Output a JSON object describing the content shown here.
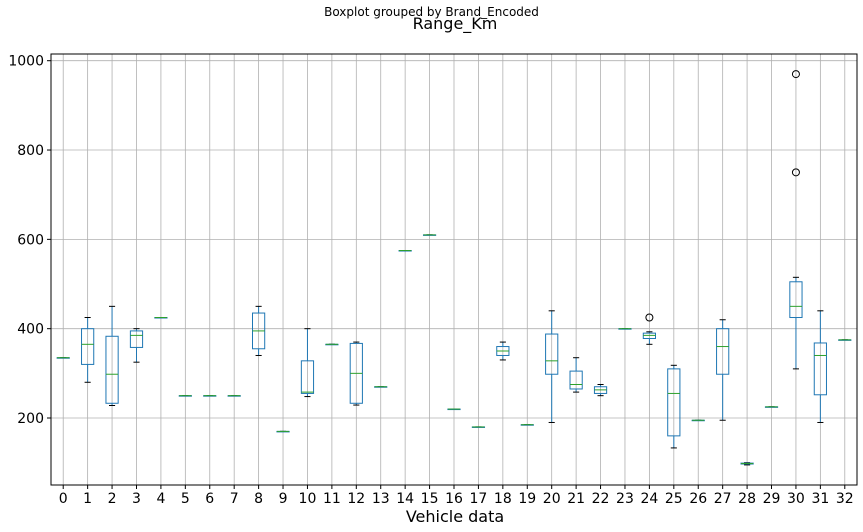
{
  "chart_data": {
    "type": "boxplot",
    "suptitle": "Boxplot grouped by Brand_Encoded",
    "title": "Range_Km",
    "xlabel": "Vehicle data",
    "ylabel": "",
    "ylim": [
      50,
      1015
    ],
    "yticks": [
      200,
      400,
      600,
      800,
      1000
    ],
    "grid": true,
    "colors": {
      "box": "#1f77b4",
      "median": "#2ca02c",
      "whisker": "#000000",
      "grid": "#b0b0b0"
    },
    "categories": [
      "0",
      "1",
      "2",
      "3",
      "4",
      "5",
      "6",
      "7",
      "8",
      "9",
      "10",
      "11",
      "12",
      "13",
      "14",
      "15",
      "16",
      "17",
      "18",
      "19",
      "20",
      "21",
      "22",
      "23",
      "24",
      "25",
      "26",
      "27",
      "28",
      "29",
      "30",
      "31",
      "32"
    ],
    "boxes": [
      {
        "min": 335,
        "q1": 335,
        "median": 335,
        "q3": 335,
        "max": 335,
        "outliers": []
      },
      {
        "min": 280,
        "q1": 320,
        "median": 365,
        "q3": 400,
        "max": 425,
        "outliers": []
      },
      {
        "min": 228,
        "q1": 233,
        "median": 298,
        "q3": 383,
        "max": 450,
        "outliers": []
      },
      {
        "min": 325,
        "q1": 358,
        "median": 385,
        "q3": 395,
        "max": 400,
        "outliers": []
      },
      {
        "min": 425,
        "q1": 425,
        "median": 425,
        "q3": 425,
        "max": 425,
        "outliers": []
      },
      {
        "min": 250,
        "q1": 250,
        "median": 250,
        "q3": 250,
        "max": 250,
        "outliers": []
      },
      {
        "min": 250,
        "q1": 250,
        "median": 250,
        "q3": 250,
        "max": 250,
        "outliers": []
      },
      {
        "min": 250,
        "q1": 250,
        "median": 250,
        "q3": 250,
        "max": 250,
        "outliers": []
      },
      {
        "min": 340,
        "q1": 355,
        "median": 395,
        "q3": 435,
        "max": 450,
        "outliers": []
      },
      {
        "min": 170,
        "q1": 170,
        "median": 170,
        "q3": 170,
        "max": 170,
        "outliers": []
      },
      {
        "min": 248,
        "q1": 255,
        "median": 258,
        "q3": 328,
        "max": 400,
        "outliers": []
      },
      {
        "min": 365,
        "q1": 365,
        "median": 365,
        "q3": 365,
        "max": 365,
        "outliers": []
      },
      {
        "min": 229,
        "q1": 233,
        "median": 300,
        "q3": 367,
        "max": 370,
        "outliers": []
      },
      {
        "min": 270,
        "q1": 270,
        "median": 270,
        "q3": 270,
        "max": 270,
        "outliers": []
      },
      {
        "min": 575,
        "q1": 575,
        "median": 575,
        "q3": 575,
        "max": 575,
        "outliers": []
      },
      {
        "min": 610,
        "q1": 610,
        "median": 610,
        "q3": 610,
        "max": 610,
        "outliers": []
      },
      {
        "min": 220,
        "q1": 220,
        "median": 220,
        "q3": 220,
        "max": 220,
        "outliers": []
      },
      {
        "min": 180,
        "q1": 180,
        "median": 180,
        "q3": 180,
        "max": 180,
        "outliers": []
      },
      {
        "min": 330,
        "q1": 340,
        "median": 350,
        "q3": 360,
        "max": 370,
        "outliers": []
      },
      {
        "min": 185,
        "q1": 185,
        "median": 185,
        "q3": 185,
        "max": 185,
        "outliers": []
      },
      {
        "min": 190,
        "q1": 298,
        "median": 328,
        "q3": 388,
        "max": 440,
        "outliers": []
      },
      {
        "min": 258,
        "q1": 265,
        "median": 275,
        "q3": 305,
        "max": 335,
        "outliers": []
      },
      {
        "min": 250,
        "q1": 255,
        "median": 263,
        "q3": 270,
        "max": 275,
        "outliers": []
      },
      {
        "min": 400,
        "q1": 400,
        "median": 400,
        "q3": 400,
        "max": 400,
        "outliers": []
      },
      {
        "min": 365,
        "q1": 378,
        "median": 385,
        "q3": 390,
        "max": 393,
        "outliers": [
          425
        ]
      },
      {
        "min": 133,
        "q1": 160,
        "median": 255,
        "q3": 310,
        "max": 318,
        "outliers": []
      },
      {
        "min": 195,
        "q1": 195,
        "median": 195,
        "q3": 195,
        "max": 195,
        "outliers": []
      },
      {
        "min": 195,
        "q1": 298,
        "median": 360,
        "q3": 400,
        "max": 420,
        "outliers": []
      },
      {
        "min": 95,
        "q1": 97,
        "median": 98,
        "q3": 99,
        "max": 100,
        "outliers": []
      },
      {
        "min": 225,
        "q1": 225,
        "median": 225,
        "q3": 225,
        "max": 225,
        "outliers": []
      },
      {
        "min": 310,
        "q1": 425,
        "median": 450,
        "q3": 505,
        "max": 515,
        "outliers": [
          750,
          970
        ]
      },
      {
        "min": 190,
        "q1": 252,
        "median": 340,
        "q3": 368,
        "max": 440,
        "outliers": []
      },
      {
        "min": 375,
        "q1": 375,
        "median": 375,
        "q3": 375,
        "max": 375,
        "outliers": []
      }
    ]
  }
}
